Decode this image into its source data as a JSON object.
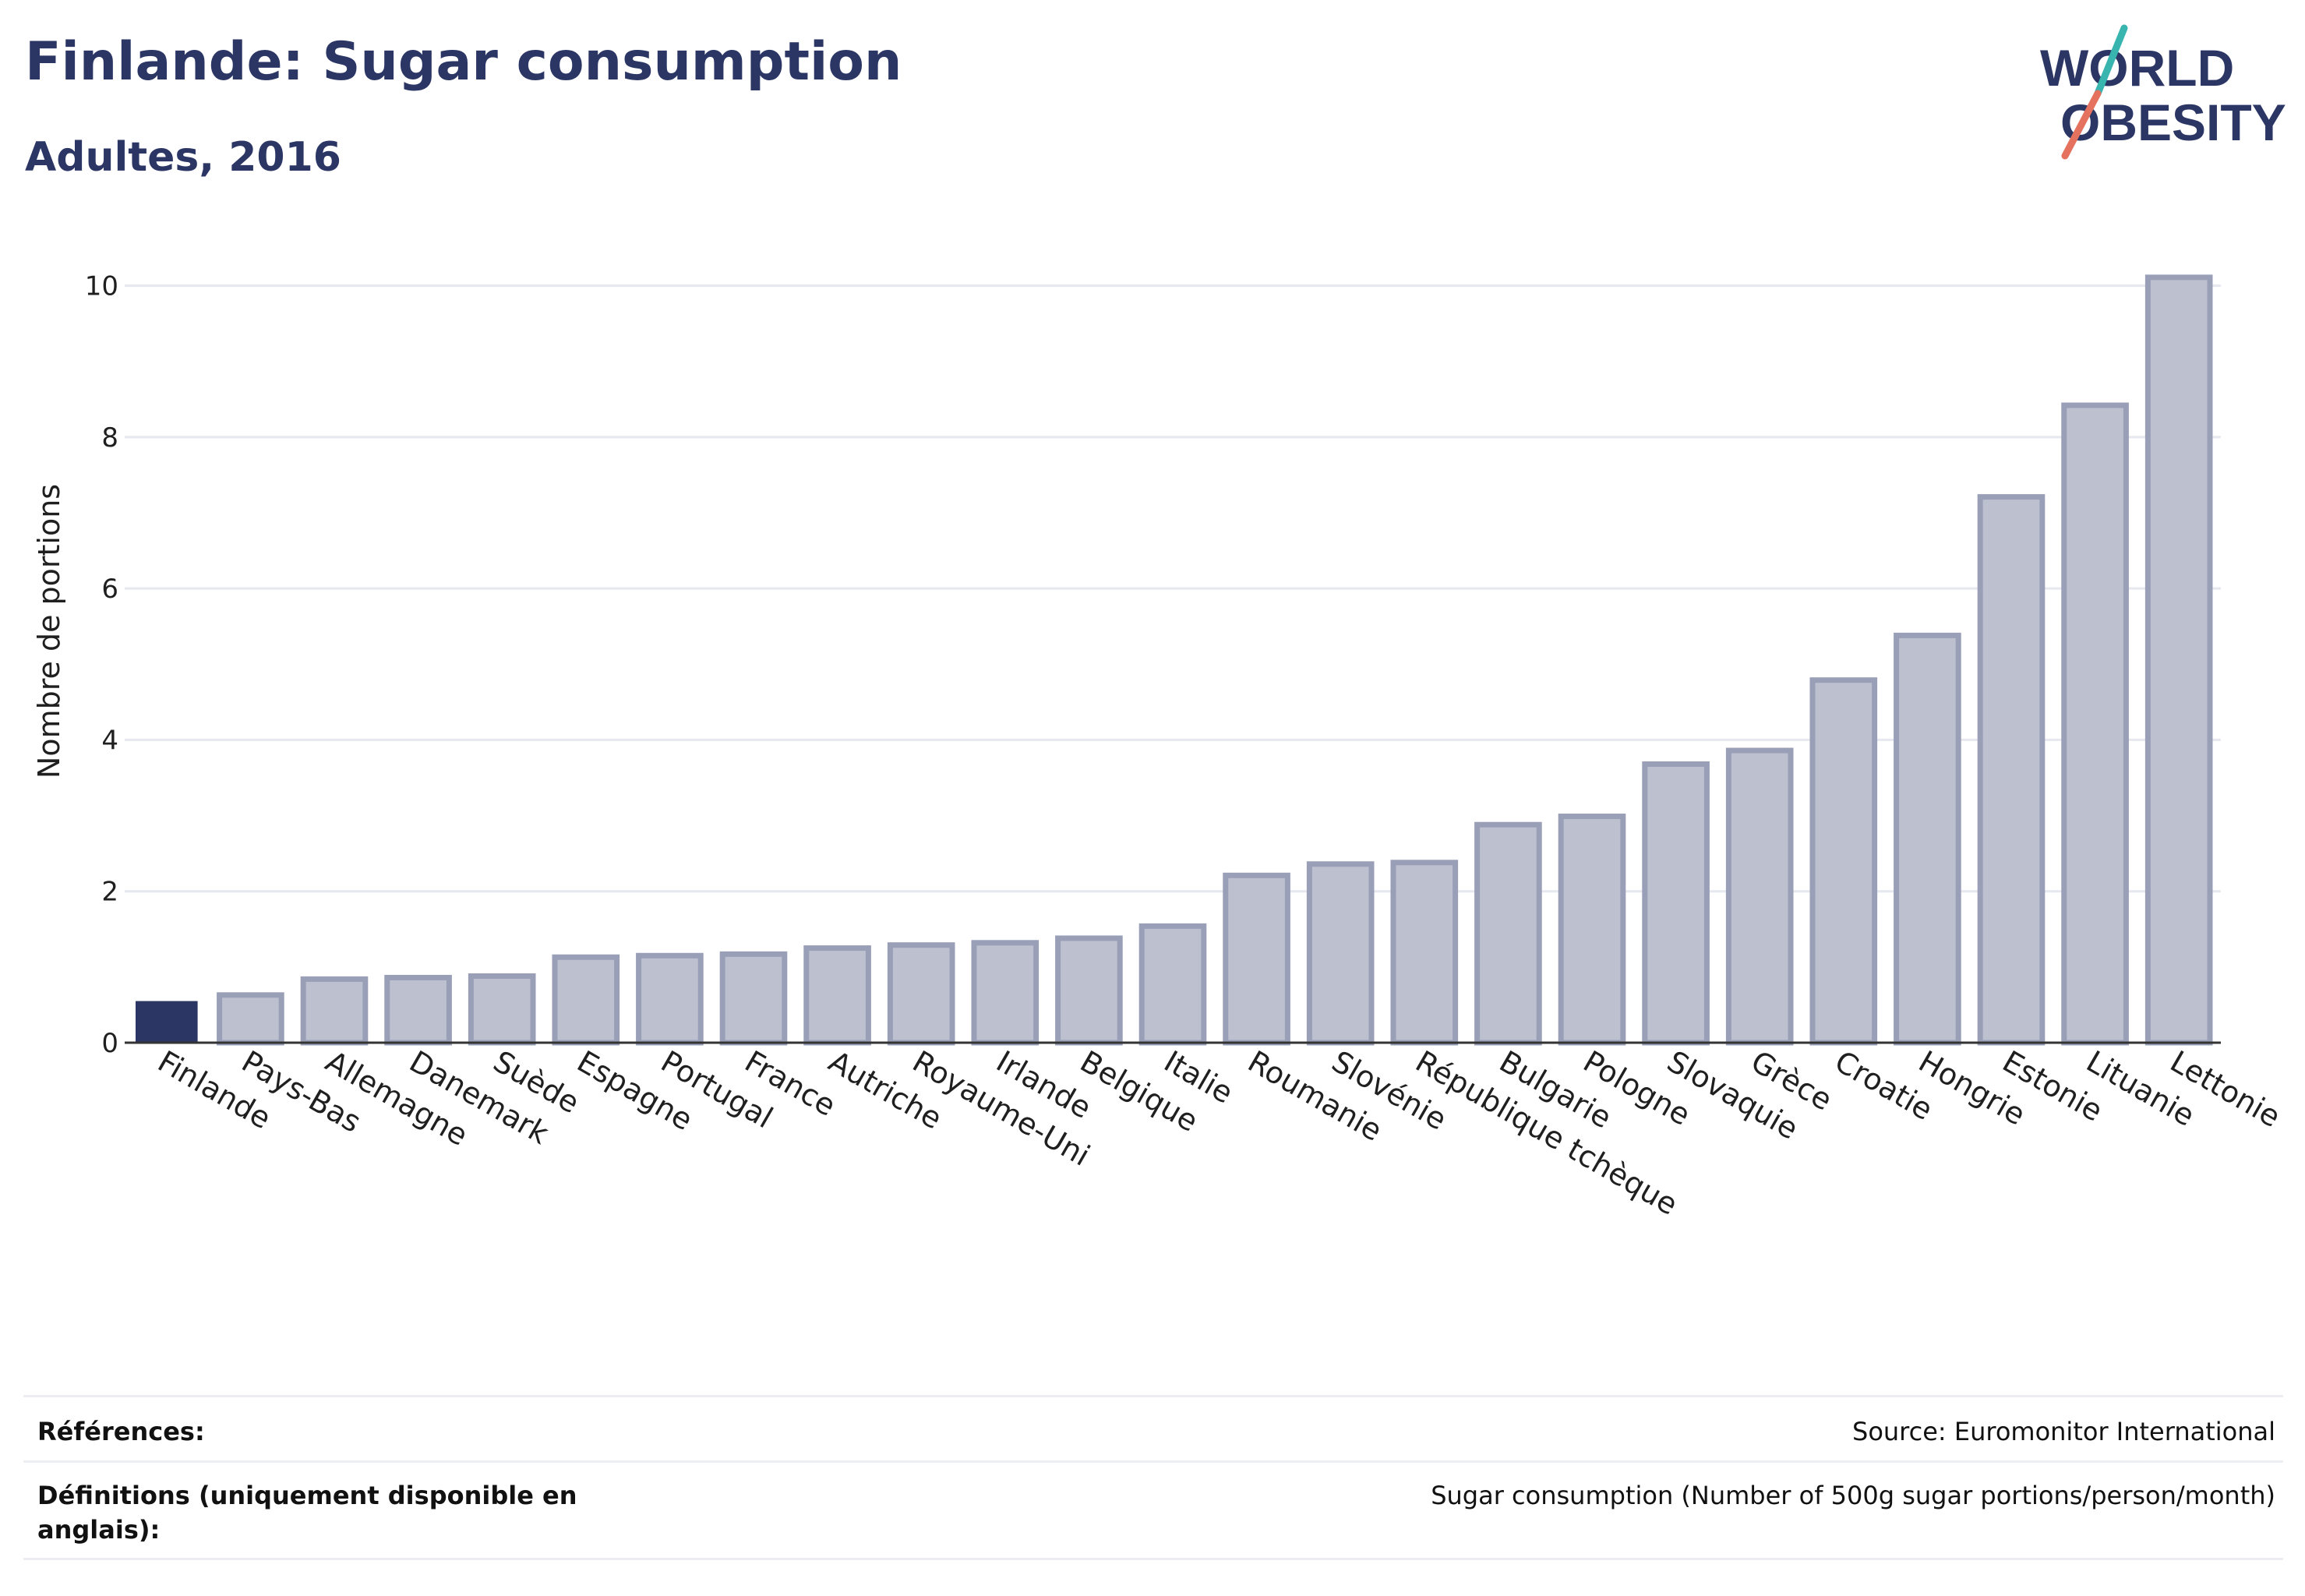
{
  "header": {
    "title": "Finlande: Sugar consumption",
    "subtitle": "Adultes, 2016"
  },
  "logo": {
    "line1": "WORLD",
    "line2": "OBESITY"
  },
  "colors": {
    "highlight": "#2b3665",
    "bar_fill": "#bcc0cf",
    "bar_stroke": "#9a9fb8",
    "grid": "#e6e8ef",
    "logo_teal": "#39b5b0",
    "logo_red": "#e4725e"
  },
  "chart_data": {
    "type": "bar",
    "ylabel": "Nombre de portions",
    "ylim": [
      0,
      10.5
    ],
    "yticks": [
      0,
      2,
      4,
      6,
      8,
      10
    ],
    "grid": true,
    "highlight": "Finlande",
    "categories": [
      "Finlande",
      "Pays-Bas",
      "Allemagne",
      "Danemark",
      "Suède",
      "Espagne",
      "Portugal",
      "France",
      "Autriche",
      "Royaume-Uni",
      "Irlande",
      "Belgique",
      "Italie",
      "Roumanie",
      "Slovénie",
      "République tchèque",
      "Bulgarie",
      "Pologne",
      "Slovaquie",
      "Grèce",
      "Croatie",
      "Hongrie",
      "Estonie",
      "Lituanie",
      "Lettonie"
    ],
    "values": [
      0.55,
      0.63,
      0.84,
      0.86,
      0.88,
      1.13,
      1.15,
      1.17,
      1.25,
      1.29,
      1.32,
      1.38,
      1.54,
      2.21,
      2.36,
      2.38,
      2.88,
      2.99,
      3.68,
      3.86,
      4.79,
      5.38,
      7.21,
      8.42,
      10.11
    ]
  },
  "footer": {
    "references_label": "Références:",
    "references_value": "Source: Euromonitor International",
    "definitions_label": "Définitions (uniquement disponible en anglais):",
    "definitions_value": "Sugar consumption (Number of 500g sugar portions/person/month)"
  }
}
